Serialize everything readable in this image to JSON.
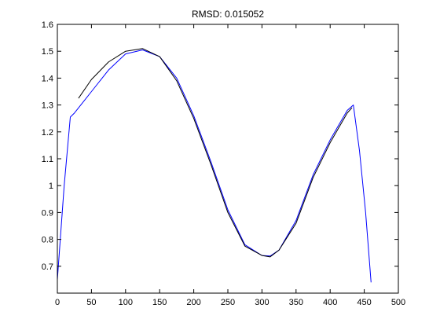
{
  "chart_data": {
    "type": "line",
    "title": "RMSD: 0.015052",
    "xlabel": "",
    "ylabel": "",
    "xlim": [
      0,
      500
    ],
    "ylim": [
      0.6,
      1.6
    ],
    "grid": false,
    "box": true,
    "xticks": [
      0,
      50,
      100,
      150,
      200,
      250,
      300,
      350,
      400,
      450,
      500
    ],
    "yticks": [
      0.7,
      0.8,
      0.9,
      1,
      1.1,
      1.2,
      1.3,
      1.4,
      1.5,
      1.6
    ],
    "xtick_labels": [
      "0",
      "50",
      "100",
      "150",
      "200",
      "250",
      "300",
      "350",
      "400",
      "450",
      "500"
    ],
    "ytick_labels": [
      "0.7",
      "0.8",
      "0.9",
      "1",
      "1.1",
      "1.2",
      "1.3",
      "1.4",
      "1.5",
      "1.6"
    ],
    "series": [
      {
        "color": "#0000ff",
        "x": [
          0,
          10,
          19,
          21,
          25,
          50,
          75,
          100,
          125,
          150,
          175,
          200,
          225,
          250,
          275,
          300,
          312,
          325,
          350,
          375,
          400,
          425,
          434,
          443,
          452,
          460
        ],
        "y": [
          0.65,
          1.0,
          1.255,
          1.26,
          1.27,
          1.35,
          1.43,
          1.49,
          1.505,
          1.48,
          1.4,
          1.26,
          1.09,
          0.91,
          0.78,
          0.74,
          0.738,
          0.76,
          0.87,
          1.04,
          1.17,
          1.28,
          1.3,
          1.13,
          0.9,
          0.64
        ]
      },
      {
        "color": "#000000",
        "x": [
          31,
          50,
          75,
          100,
          125,
          150,
          175,
          200,
          225,
          250,
          275,
          300,
          312,
          325,
          350,
          375,
          400,
          425,
          432
        ],
        "y": [
          1.325,
          1.395,
          1.46,
          1.5,
          1.51,
          1.48,
          1.39,
          1.25,
          1.08,
          0.9,
          0.775,
          0.74,
          0.735,
          0.76,
          0.86,
          1.03,
          1.16,
          1.27,
          1.29
        ]
      }
    ]
  }
}
